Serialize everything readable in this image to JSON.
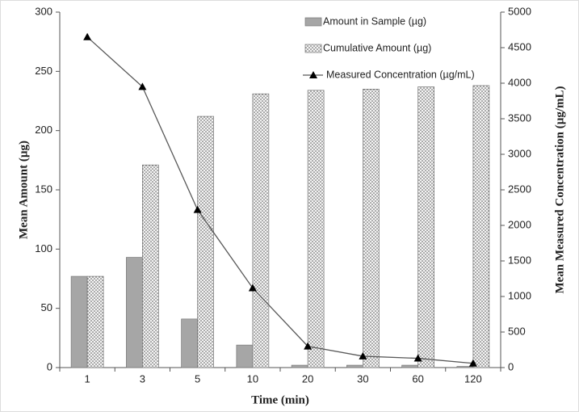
{
  "chart_data": {
    "type": "bar",
    "x_label": "Time (min)",
    "y_label": "Mean Amount (µg)",
    "y2_label": "Mean Measured Concentration (µg/mL)",
    "categories": [
      "1",
      "3",
      "5",
      "10",
      "20",
      "30",
      "60",
      "120"
    ],
    "series": [
      {
        "name": "Amount in Sample (µg)",
        "color": "#a6a6a6",
        "values": [
          77,
          93,
          41,
          19,
          2,
          2,
          2,
          1
        ]
      },
      {
        "name": "Cumulative Amount (µg)",
        "color": "#e6e6e6",
        "pattern": "dots",
        "values": [
          77,
          171,
          212,
          231,
          234,
          235,
          237,
          238
        ]
      },
      {
        "name": "Measured Concentration (µg/mL)",
        "type": "line",
        "axis": "y2",
        "color": "#595959",
        "marker": "triangle",
        "values": [
          4650,
          3950,
          2220,
          1120,
          300,
          160,
          130,
          60
        ]
      }
    ],
    "ylim": [
      0,
      300
    ],
    "yticks": [
      0,
      50,
      100,
      150,
      200,
      250,
      300
    ],
    "y2lim": [
      0,
      5000
    ],
    "y2ticks": [
      0,
      500,
      1000,
      1500,
      2000,
      2500,
      3000,
      3500,
      4000,
      4500,
      5000
    ],
    "legend": "top-right"
  }
}
